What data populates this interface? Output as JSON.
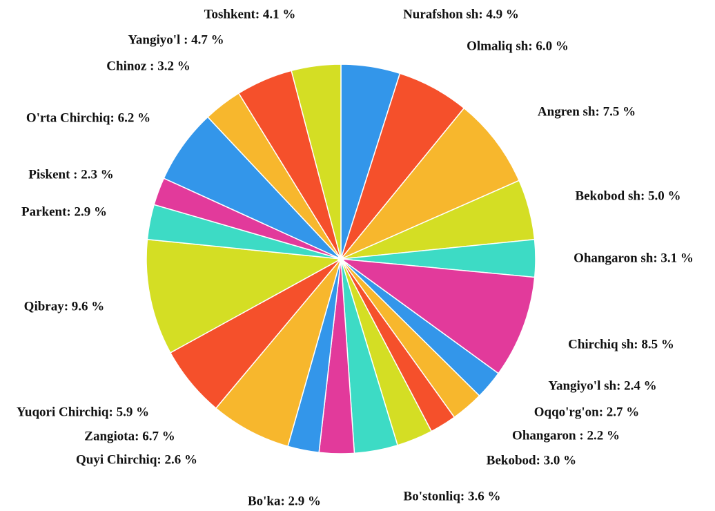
{
  "chart_data": {
    "type": "pie",
    "values": [
      4.9,
      6.0,
      7.5,
      5.0,
      3.1,
      8.5,
      2.4,
      2.7,
      2.2,
      3.0,
      3.6,
      2.9,
      2.6,
      6.7,
      5.9,
      9.6,
      2.9,
      2.3,
      6.2,
      3.2,
      4.7,
      4.1
    ],
    "value_labels": [
      "Nurafshon sh: 4.9 %",
      "Olmaliq sh: 6.0 %",
      "Angren sh: 7.5 %",
      "Bekobod sh: 5.0 %",
      "Ohangaron sh: 3.1 %",
      "Chirchiq sh: 8.5 %",
      "Yangiyo'l sh: 2.4 %",
      "Oqqo'rg'on: 2.7 %",
      "Ohangaron : 2.2 %",
      "Bekobod: 3.0 %",
      "Bo'stonliq: 3.6 %",
      "Bo'ka: 2.9 %",
      "Quyi Chirchiq: 2.6 %",
      "Zangiota: 6.7 %",
      "Yuqori Chirchiq: 5.9 %",
      "Qibray: 9.6 %",
      "Parkent: 2.9 %",
      "Piskent : 2.3 %",
      "O'rta Chirchiq: 6.2 %",
      "Chinoz : 3.2 %",
      "Yangiyo'l : 4.7 %",
      "Toshkent: 4.1 %"
    ],
    "colors": [
      "#3396ea",
      "#f5502b",
      "#f7b72d",
      "#d4de24",
      "#3ddbc5",
      "#e23a9b",
      "#3396ea",
      "#f7b72d",
      "#f5502b",
      "#d4de24",
      "#3ddbc5",
      "#e23a9b",
      "#3396ea",
      "#f7b72d",
      "#f5502b",
      "#d4de24",
      "#3ddbc5",
      "#e23a9b",
      "#3396ea",
      "#f7b72d",
      "#f5502b",
      "#d4de24"
    ]
  }
}
